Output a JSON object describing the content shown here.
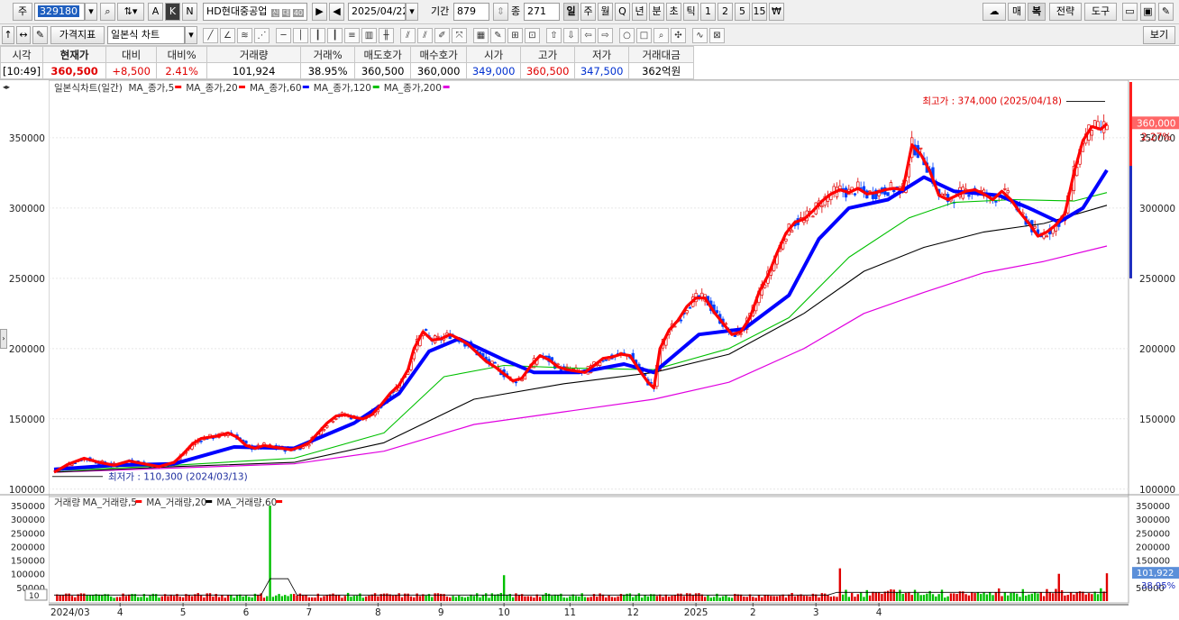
{
  "toolbar": {
    "market_label": "주",
    "stock_code": "329180",
    "button_a": "A",
    "button_k": "K",
    "button_n": "N",
    "stock_name": "HD현대중공업",
    "stock_badges": [
      "신",
      "대",
      "40"
    ],
    "date": "2025/04/22",
    "period_label": "기간",
    "period_value": "879",
    "count_label": "종",
    "count_value": "271",
    "timeframes": [
      "일",
      "주",
      "월",
      "Q",
      "년",
      "분",
      "초",
      "틱",
      "1",
      "2",
      "5",
      "15",
      "₩"
    ],
    "active_timeframe": "일",
    "right_buttons": [
      "매",
      "복",
      "전략",
      "도구"
    ]
  },
  "toolbar2": {
    "indicator_button": "가격지표",
    "chart_type": "일본식 차트",
    "view_button": "보기"
  },
  "quote": {
    "headers": [
      "시각",
      "현재가",
      "대비",
      "대비%",
      "거래량",
      "거래%",
      "매도호가",
      "매수호가",
      "시가",
      "고가",
      "저가",
      "거래대금"
    ],
    "values": [
      "[10:49]",
      "360,500",
      "+8,500",
      "2.41%",
      "101,924",
      "38.95%",
      "360,500",
      "360,000",
      "349,000",
      "360,500",
      "347,500",
      "362억원"
    ]
  },
  "chart_data": {
    "type": "line",
    "price_legend": {
      "title": "일본식차트(일간)",
      "items": [
        {
          "label": "MA_종가,5",
          "color": "#ff0000"
        },
        {
          "label": "MA_종가,20",
          "color": "#ff0000"
        },
        {
          "label": "MA_종가,60",
          "color": "#0000ff"
        },
        {
          "label": "MA_종가,120",
          "color": "#00c000"
        },
        {
          "label": "MA_종가,200",
          "color": "#e000e0"
        }
      ]
    },
    "volume_legend": {
      "title": "거래량",
      "items": [
        {
          "label": "MA_거래량,5",
          "color": "#ff0000"
        },
        {
          "label": "MA_거래량,20",
          "color": "#000000"
        },
        {
          "label": "MA_거래량,60",
          "color": "#ff0000"
        }
      ]
    },
    "x_labels": [
      "2024/03",
      "4",
      "5",
      "6",
      "7",
      "8",
      "9",
      "10",
      "11",
      "12",
      "2025",
      "2",
      "3",
      "4"
    ],
    "price_ticks": [
      "350000",
      "300000",
      "250000",
      "200000",
      "150000",
      "100000"
    ],
    "price_tick_values": [
      350000,
      300000,
      250000,
      200000,
      150000,
      100000
    ],
    "price_ylim": [
      96000,
      382000
    ],
    "volume_ticks": [
      "350000",
      "300000",
      "250000",
      "200000",
      "150000",
      "100000",
      "50000"
    ],
    "volume_tick_values": [
      350000,
      300000,
      250000,
      200000,
      150000,
      100000,
      50000
    ],
    "volume_ylim": [
      0,
      370000
    ],
    "volume_unit_label": "10",
    "max_note": "최고가 : 374,000 (2025/04/18)",
    "min_note": "최저가 : 110,300 (2024/03/13)",
    "last_price_badge": "360,000",
    "last_change_pct": "2.27%",
    "last_volume_badge": "101,922",
    "last_volume_pct": "38.95%",
    "close_series": [
      [
        0,
        112000
      ],
      [
        5,
        118000
      ],
      [
        10,
        122000
      ],
      [
        15,
        119000
      ],
      [
        20,
        117000
      ],
      [
        25,
        120000
      ],
      [
        30,
        118000
      ],
      [
        35,
        116000
      ],
      [
        40,
        119000
      ],
      [
        43,
        125000
      ],
      [
        46,
        132000
      ],
      [
        49,
        136000
      ],
      [
        52,
        137000
      ],
      [
        55,
        138000
      ],
      [
        58,
        140000
      ],
      [
        61,
        137000
      ],
      [
        64,
        131000
      ],
      [
        67,
        129000
      ],
      [
        70,
        131000
      ],
      [
        73,
        130000
      ],
      [
        76,
        129000
      ],
      [
        79,
        128000
      ],
      [
        82,
        130000
      ],
      [
        85,
        133000
      ],
      [
        88,
        140000
      ],
      [
        91,
        147000
      ],
      [
        94,
        152000
      ],
      [
        97,
        153000
      ],
      [
        100,
        151000
      ],
      [
        103,
        150000
      ],
      [
        106,
        153000
      ],
      [
        109,
        160000
      ],
      [
        112,
        168000
      ],
      [
        115,
        174000
      ],
      [
        118,
        185000
      ],
      [
        120,
        200000
      ],
      [
        123,
        212000
      ],
      [
        126,
        206000
      ],
      [
        129,
        207000
      ],
      [
        132,
        210000
      ],
      [
        135,
        207000
      ],
      [
        138,
        203000
      ],
      [
        141,
        197000
      ],
      [
        144,
        191000
      ],
      [
        147,
        187000
      ],
      [
        150,
        182000
      ],
      [
        153,
        177000
      ],
      [
        156,
        179000
      ],
      [
        159,
        188000
      ],
      [
        162,
        195000
      ],
      [
        165,
        192000
      ],
      [
        168,
        187000
      ],
      [
        171,
        185000
      ],
      [
        174,
        184000
      ],
      [
        177,
        183000
      ],
      [
        180,
        188000
      ],
      [
        183,
        193000
      ],
      [
        186,
        194000
      ],
      [
        189,
        196000
      ],
      [
        192,
        195000
      ],
      [
        195,
        185000
      ],
      [
        198,
        176000
      ],
      [
        200,
        172000
      ],
      [
        202,
        200000
      ],
      [
        205,
        213000
      ],
      [
        208,
        220000
      ],
      [
        211,
        230000
      ],
      [
        214,
        236000
      ],
      [
        217,
        236000
      ],
      [
        220,
        226000
      ],
      [
        223,
        218000
      ],
      [
        226,
        210000
      ],
      [
        229,
        212000
      ],
      [
        232,
        222000
      ],
      [
        235,
        240000
      ],
      [
        238,
        252000
      ],
      [
        241,
        268000
      ],
      [
        244,
        282000
      ],
      [
        247,
        290000
      ],
      [
        250,
        292000
      ],
      [
        253,
        298000
      ],
      [
        256,
        305000
      ],
      [
        259,
        310000
      ],
      [
        262,
        313000
      ],
      [
        265,
        311000
      ],
      [
        268,
        314000
      ],
      [
        271,
        310000
      ],
      [
        274,
        311000
      ],
      [
        277,
        313000
      ],
      [
        280,
        314000
      ],
      [
        283,
        313000
      ],
      [
        286,
        345000
      ],
      [
        289,
        338000
      ],
      [
        292,
        326000
      ],
      [
        295,
        309000
      ],
      [
        298,
        306000
      ],
      [
        301,
        309000
      ],
      [
        304,
        312000
      ],
      [
        307,
        313000
      ],
      [
        310,
        310000
      ],
      [
        313,
        306000
      ],
      [
        316,
        312000
      ],
      [
        319,
        306000
      ],
      [
        322,
        297000
      ],
      [
        325,
        289000
      ],
      [
        328,
        280000
      ],
      [
        331,
        283000
      ],
      [
        334,
        288000
      ],
      [
        337,
        296000
      ],
      [
        340,
        325000
      ],
      [
        343,
        348000
      ],
      [
        346,
        358000
      ],
      [
        349,
        356000
      ],
      [
        351,
        360000
      ]
    ],
    "ma60_series": [
      [
        0,
        114000
      ],
      [
        20,
        117000
      ],
      [
        40,
        118000
      ],
      [
        60,
        130000
      ],
      [
        80,
        129000
      ],
      [
        100,
        147000
      ],
      [
        115,
        168000
      ],
      [
        125,
        198000
      ],
      [
        135,
        207000
      ],
      [
        150,
        192000
      ],
      [
        160,
        183000
      ],
      [
        175,
        183000
      ],
      [
        190,
        189000
      ],
      [
        200,
        183000
      ],
      [
        215,
        210000
      ],
      [
        230,
        214000
      ],
      [
        245,
        238000
      ],
      [
        255,
        278000
      ],
      [
        265,
        300000
      ],
      [
        278,
        306000
      ],
      [
        290,
        322000
      ],
      [
        300,
        312000
      ],
      [
        315,
        309000
      ],
      [
        325,
        300000
      ],
      [
        335,
        290000
      ],
      [
        343,
        300000
      ],
      [
        351,
        327000
      ]
    ],
    "ma120_series": [
      [
        0,
        113000
      ],
      [
        40,
        117000
      ],
      [
        80,
        122000
      ],
      [
        110,
        140000
      ],
      [
        130,
        180000
      ],
      [
        150,
        188000
      ],
      [
        175,
        186000
      ],
      [
        200,
        185000
      ],
      [
        225,
        200000
      ],
      [
        245,
        222000
      ],
      [
        265,
        265000
      ],
      [
        285,
        293000
      ],
      [
        300,
        304000
      ],
      [
        320,
        306000
      ],
      [
        340,
        305000
      ],
      [
        351,
        311000
      ]
    ],
    "ma200_series": [
      [
        0,
        112000
      ],
      [
        40,
        116000
      ],
      [
        80,
        119000
      ],
      [
        110,
        133000
      ],
      [
        140,
        164000
      ],
      [
        170,
        175000
      ],
      [
        200,
        183000
      ],
      [
        225,
        196000
      ],
      [
        250,
        225000
      ],
      [
        270,
        255000
      ],
      [
        290,
        272000
      ],
      [
        310,
        283000
      ],
      [
        330,
        289000
      ],
      [
        351,
        302000
      ]
    ],
    "ma_long_series": [
      [
        0,
        112000
      ],
      [
        40,
        115000
      ],
      [
        80,
        118000
      ],
      [
        110,
        127000
      ],
      [
        140,
        146000
      ],
      [
        170,
        155000
      ],
      [
        200,
        164000
      ],
      [
        225,
        176000
      ],
      [
        250,
        200000
      ],
      [
        270,
        225000
      ],
      [
        290,
        240000
      ],
      [
        310,
        254000
      ],
      [
        330,
        262000
      ],
      [
        351,
        273000
      ]
    ],
    "volume_spikes": [
      [
        72,
        350000
      ],
      [
        150,
        95000
      ],
      [
        262,
        120000
      ],
      [
        335,
        100000
      ],
      [
        351,
        101922
      ]
    ]
  }
}
